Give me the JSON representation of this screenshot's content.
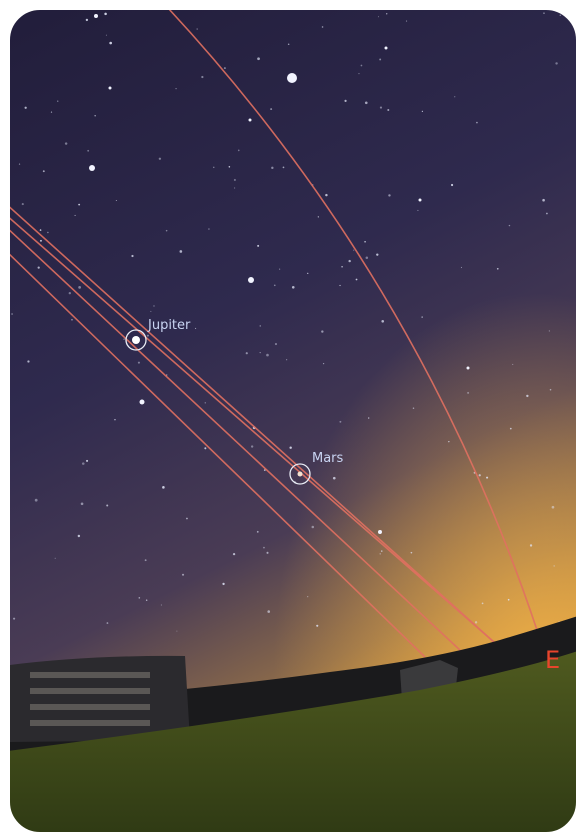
{
  "labels": {
    "jupiter": "Jupiter",
    "mars": "Mars",
    "cardinal": "E"
  }
}
